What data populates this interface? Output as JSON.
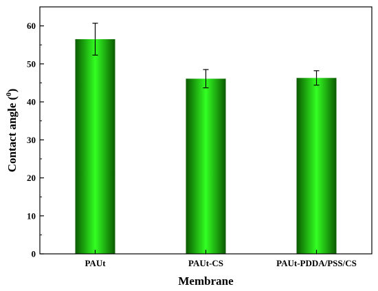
{
  "chart_data": {
    "type": "bar",
    "categories": [
      "PAUt",
      "PAUt-CS",
      "PAUt-PDDA/PSS/CS"
    ],
    "values": [
      56.5,
      46.1,
      46.3
    ],
    "errors": [
      4.2,
      2.4,
      1.9
    ],
    "xlabel": "Membrane",
    "ylabel": {
      "pre": "Contact angle (",
      "sup": "0",
      "post": ")"
    },
    "ylim": [
      0,
      65
    ],
    "yticks": [
      0,
      10,
      20,
      30,
      40,
      50,
      60
    ],
    "grid": false,
    "legend": "none",
    "colors": {
      "bar_edge": "#0a5a00",
      "bar_center": "#33ff22",
      "axis": "#000000"
    }
  }
}
